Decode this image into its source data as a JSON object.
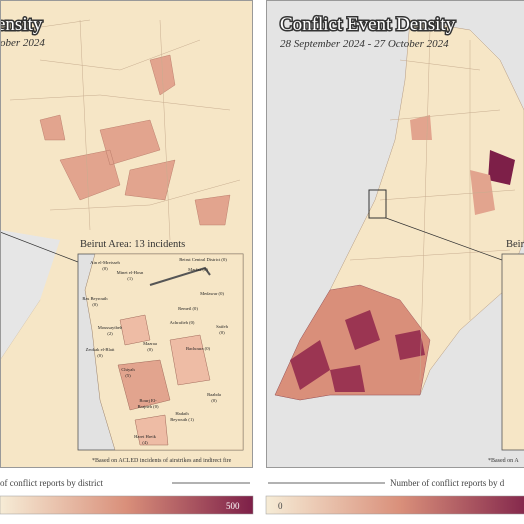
{
  "left_panel": {
    "title": "ensity",
    "subtitle": "ober 2024",
    "inset": {
      "title": "Beirut Area: 13 incidents",
      "districts": [
        {
          "name": "Ain el-Mreisseh",
          "count": "(0)"
        },
        {
          "name": "Beirut Central District (0)"
        },
        {
          "name": "Minet el-Hosn",
          "count": "(1)"
        },
        {
          "name": "Marfaa (0)"
        },
        {
          "name": "Ras Beyrouth",
          "count": "(0)"
        },
        {
          "name": "Medawar (0)"
        },
        {
          "name": "Moussaytbeh",
          "count": "(2)"
        },
        {
          "name": "Remeil (0)"
        },
        {
          "name": "Achrafieh (0)"
        },
        {
          "name": "Saifeh",
          "count": "(0)"
        },
        {
          "name": "Zeokak el-Blatt",
          "count": "(0)"
        },
        {
          "name": "Mazraa",
          "count": "(0)"
        },
        {
          "name": "Bachoura (0)"
        },
        {
          "name": "Chiyah",
          "count": "(5)"
        },
        {
          "name": "Bourj El-",
          "count": "Brajneh (0)"
        },
        {
          "name": "Baabda",
          "count": "(0)"
        },
        {
          "name": "Hadath",
          "count": "Beyrouth (1)"
        },
        {
          "name": "Haret Hreik",
          "count": "(4)"
        }
      ],
      "footnote": "*Based on ACLED incidents of airstrikes and indirect fire"
    },
    "legend": {
      "label": "of conflict reports by district",
      "max": 500
    }
  },
  "right_panel": {
    "title": "Conflict Event Density",
    "subtitle": "28 September 2024 - 27 October 2024",
    "inset": {
      "title": "Beiru",
      "footnote": "*Based on A"
    },
    "legend": {
      "label": "Number of conflict reports by d",
      "min": 0
    }
  }
}
